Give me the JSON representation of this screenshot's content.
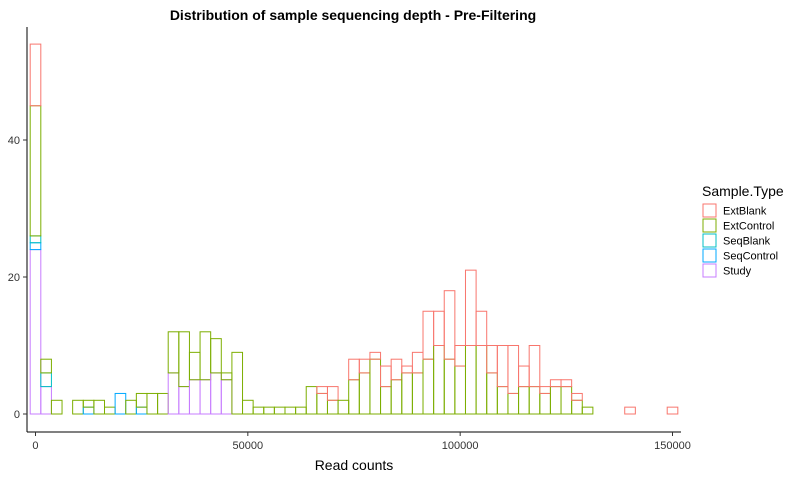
{
  "chart_data": {
    "type": "bar",
    "stacked": true,
    "title": "Distribution of sample sequencing depth - Pre-Filtering",
    "xlabel": "Read counts",
    "ylabel": "",
    "xlim": [
      -2000,
      152000
    ],
    "ylim": [
      0,
      55
    ],
    "x_ticks": [
      {
        "value": 0,
        "label": "0"
      },
      {
        "value": 50000,
        "label": "50000"
      },
      {
        "value": 100000,
        "label": "100000"
      },
      {
        "value": 150000,
        "label": "150000"
      }
    ],
    "y_ticks": [
      {
        "value": 0,
        "label": "0"
      },
      {
        "value": 20,
        "label": "20"
      },
      {
        "value": 40,
        "label": "40"
      }
    ],
    "grid": false,
    "bin_width": 2500,
    "bin_starts": [
      -1250,
      1250,
      3750,
      6250,
      8750,
      11250,
      13750,
      16250,
      18750,
      21250,
      23750,
      26250,
      28750,
      31250,
      33750,
      36250,
      38750,
      41250,
      43750,
      46250,
      48750,
      51250,
      53750,
      56250,
      58750,
      61250,
      63750,
      66250,
      68750,
      71250,
      73750,
      76250,
      78750,
      81250,
      83750,
      86250,
      88750,
      91250,
      93750,
      96250,
      98750,
      101250,
      103750,
      106250,
      108750,
      111250,
      113750,
      116250,
      118750,
      121250,
      123750,
      126250,
      128750,
      131250,
      133750,
      136250,
      138750,
      141250,
      143750,
      146250,
      148750
    ],
    "legend": {
      "title": "Sample.Type",
      "position": "right"
    },
    "series": [
      {
        "name": "Study",
        "color": "#C77CFF",
        "values": [
          24,
          4,
          0,
          0,
          0,
          0,
          0,
          0,
          0,
          0,
          0,
          0,
          0,
          6,
          4,
          5,
          5,
          6,
          5,
          0,
          0,
          0,
          0,
          0,
          0,
          0,
          0,
          0,
          0,
          0,
          0,
          0,
          0,
          0,
          0,
          0,
          0,
          0,
          0,
          0,
          0,
          0,
          0,
          0,
          0,
          0,
          0,
          0,
          0,
          0,
          0,
          0,
          0,
          0,
          0,
          0,
          0,
          0,
          0,
          0,
          0
        ]
      },
      {
        "name": "SeqControl",
        "color": "#00A9FF",
        "values": [
          1,
          0,
          0,
          0,
          0,
          1,
          0,
          0,
          3,
          0,
          1,
          0,
          0,
          0,
          0,
          0,
          0,
          0,
          0,
          0,
          0,
          0,
          0,
          0,
          0,
          0,
          0,
          0,
          0,
          0,
          0,
          0,
          0,
          0,
          0,
          0,
          0,
          0,
          0,
          0,
          0,
          0,
          0,
          0,
          0,
          0,
          0,
          0,
          0,
          0,
          0,
          0,
          0,
          0,
          0,
          0,
          0,
          0,
          0,
          0,
          0
        ]
      },
      {
        "name": "SeqBlank",
        "color": "#00BFC4",
        "values": [
          1,
          2,
          0,
          0,
          0,
          0,
          0,
          0,
          0,
          0,
          0,
          0,
          0,
          0,
          0,
          0,
          0,
          0,
          0,
          0,
          0,
          0,
          0,
          0,
          0,
          0,
          0,
          0,
          0,
          0,
          0,
          0,
          0,
          0,
          0,
          0,
          0,
          0,
          0,
          0,
          0,
          0,
          0,
          0,
          0,
          0,
          0,
          0,
          0,
          0,
          0,
          0,
          0,
          0,
          0,
          0,
          0,
          0,
          0,
          0,
          0
        ]
      },
      {
        "name": "ExtControl",
        "color": "#7CAE00",
        "values": [
          19,
          2,
          2,
          0,
          2,
          1,
          2,
          1,
          0,
          2,
          2,
          3,
          3,
          6,
          8,
          4,
          7,
          5,
          1,
          9,
          2,
          1,
          1,
          1,
          1,
          1,
          4,
          3,
          2,
          2,
          5,
          6,
          8,
          4,
          5,
          6,
          6,
          8,
          10,
          8,
          7,
          10,
          10,
          6,
          4,
          3,
          4,
          4,
          3,
          4,
          4,
          2,
          1,
          0,
          0,
          0,
          0,
          0,
          0,
          0,
          0
        ]
      },
      {
        "name": "ExtBlank",
        "color": "#F8766D",
        "values": [
          9,
          0,
          0,
          0,
          0,
          0,
          0,
          0,
          0,
          0,
          0,
          0,
          0,
          0,
          0,
          0,
          0,
          0,
          0,
          0,
          0,
          0,
          0,
          0,
          0,
          0,
          0,
          1,
          2,
          0,
          3,
          2,
          1,
          3,
          3,
          1,
          3,
          7,
          5,
          10,
          3,
          11,
          5,
          4,
          6,
          7,
          3,
          6,
          1,
          1,
          1,
          1,
          0,
          0,
          0,
          0,
          1,
          0,
          0,
          0,
          1
        ]
      }
    ],
    "legend_order": [
      "ExtBlank",
      "ExtControl",
      "SeqBlank",
      "SeqControl",
      "Study"
    ]
  }
}
